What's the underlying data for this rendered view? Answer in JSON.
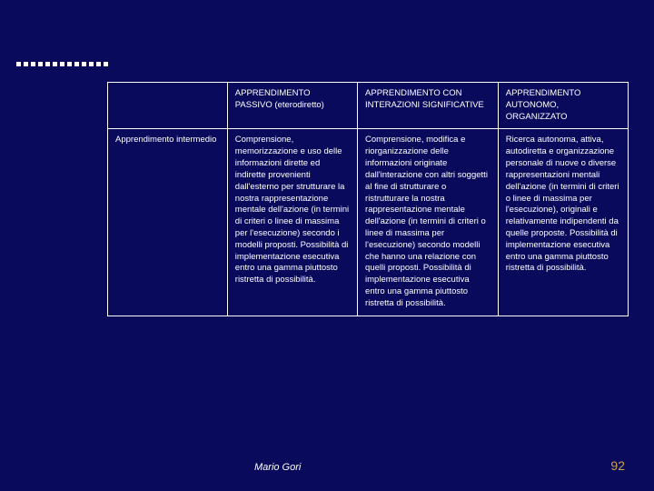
{
  "colors": {
    "background": "#0a0a5c",
    "text": "#ffffff",
    "border": "#ffffff",
    "pagenum": "#c9a04a"
  },
  "typography": {
    "body_fontsize_pt": 9.5,
    "footer_fontsize_pt": 11,
    "pagenum_fontsize_pt": 14,
    "line_height": 1.35
  },
  "table": {
    "column_widths_pct": [
      23,
      25,
      27,
      25
    ],
    "headers": [
      "",
      "APPRENDIMENTO PASSIVO (eterodiretto)",
      "APPRENDIMENTO CON INTERAZIONI SIGNIFICATIVE",
      "APPRENDIMENTO AUTONOMO, ORGANIZZATO"
    ],
    "row_label": "Apprendimento intermedio",
    "cells": [
      "Comprensione, memorizzazione e uso delle informazioni dirette ed indirette provenienti dall'esterno per strutturare la nostra rappresentazione mentale dell'azione (in termini di criteri o linee di massima per l'esecuzione) secondo i modelli proposti. Possibilità di implementazione esecutiva entro una gamma piuttosto ristretta di possibilità.",
      "Comprensione, modifica e riorganizzazione delle informazioni originate dall'interazione con altri soggetti al fine di strutturare o ristrutturare la nostra rappresentazione mentale dell'azione (in termini di criteri o linee di massima per l'esecuzione) secondo modelli che hanno una relazione con quelli proposti. Possibilità di implementazione esecutiva entro una gamma piuttosto ristretta di possibilità.",
      "Ricerca autonoma, attiva, autodiretta e organizzazione personale di nuove o diverse rappresentazioni mentali dell'azione (in termini di criteri o linee di massima per l'esecuzione), originali e relativamente indipendenti da quelle proposte. Possibilità di implementazione esecutiva entro una gamma piuttosto ristretta di possibilità."
    ]
  },
  "footer": {
    "author": "Mario Gori",
    "page_number": "92"
  }
}
